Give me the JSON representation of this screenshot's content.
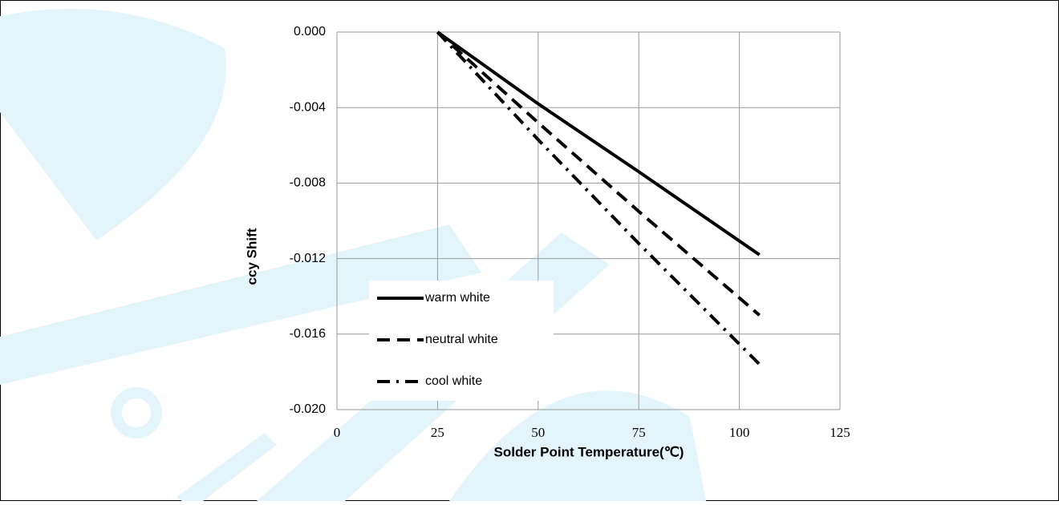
{
  "chart_data": {
    "type": "line",
    "xlabel": "Solder Point Temperature(℃)",
    "ylabel": "ccy Shift",
    "xlim": [
      0,
      125
    ],
    "xticks": [
      0,
      25,
      50,
      75,
      100,
      125
    ],
    "ylim": [
      -0.02,
      0.0
    ],
    "yticks": [
      {
        "value": 0.0,
        "label": "0.000"
      },
      {
        "value": -0.004,
        "label": "-0.004"
      },
      {
        "value": -0.008,
        "label": "-0.008"
      },
      {
        "value": -0.012,
        "label": "-0.012"
      },
      {
        "value": -0.016,
        "label": "-0.016"
      },
      {
        "value": -0.02,
        "label": "-0.020"
      }
    ],
    "grid": true,
    "legend": "lower left",
    "series": [
      {
        "name": "warm white",
        "color": "#000000",
        "linestyle": "solid",
        "x": [
          25,
          50,
          75,
          105
        ],
        "values": [
          0.0,
          -0.0038,
          -0.0074,
          -0.0118
        ]
      },
      {
        "name": "neutral white",
        "color": "#000000",
        "linestyle": "dashed",
        "x": [
          25,
          50,
          75,
          105
        ],
        "values": [
          0.0,
          -0.0048,
          -0.0095,
          -0.015
        ]
      },
      {
        "name": "cool white",
        "color": "#000000",
        "linestyle": "dashdot",
        "x": [
          25,
          50,
          75,
          105
        ],
        "values": [
          0.0,
          -0.0057,
          -0.0112,
          -0.0176
        ]
      }
    ]
  }
}
